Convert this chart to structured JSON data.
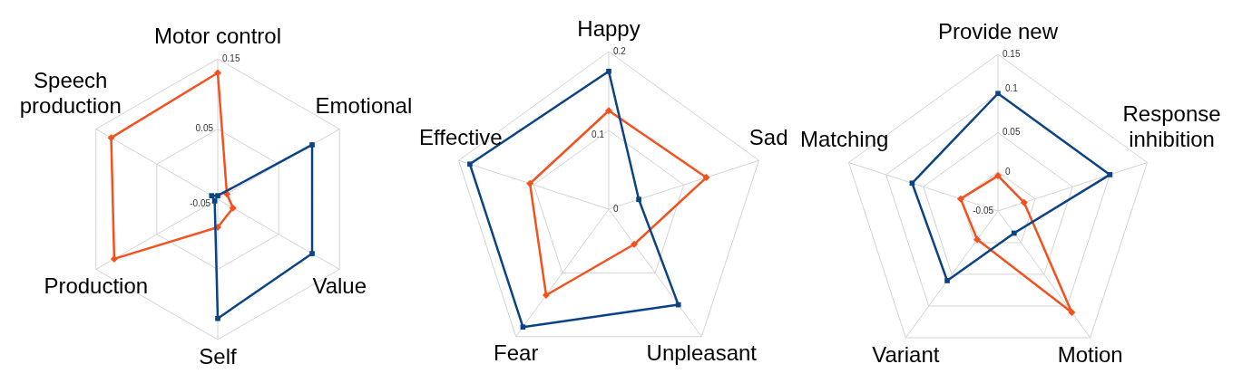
{
  "chart_data": [
    {
      "type": "radar",
      "categories": [
        "Motor control",
        "Emotional",
        "Value",
        "Self",
        "Production",
        "Speech production"
      ],
      "series": [
        {
          "color": "#0b4384",
          "values": [
            -0.045,
            0.105,
            0.105,
            0.12,
            -0.045,
            -0.04
          ]
        },
        {
          "color": "#f4511e",
          "marker": "diamond",
          "values": [
            0.13,
            -0.035,
            -0.025,
            -0.01,
            0.12,
            0.125
          ]
        }
      ],
      "ylim": [
        -0.05,
        0.15
      ],
      "yticks": [
        -0.05,
        0.05,
        0.15
      ],
      "grid": true,
      "marker": "square"
    },
    {
      "type": "radar",
      "categories": [
        "Happy",
        "Sad",
        "Unpleasant",
        "Fear",
        "Effective"
      ],
      "series": [
        {
          "color": "#0b4384",
          "values": [
            0.175,
            0.04,
            0.15,
            0.185,
            0.185
          ]
        },
        {
          "color": "#f4511e",
          "marker": "diamond",
          "values": [
            0.125,
            0.13,
            0.055,
            0.135,
            0.105
          ]
        }
      ],
      "ylim": [
        0,
        0.2
      ],
      "yticks": [
        0,
        0.1,
        0.2
      ],
      "grid": true,
      "marker": "square"
    },
    {
      "type": "radar",
      "categories": [
        "Provide new",
        "Response inhibition",
        "Motion",
        "Variant",
        "Matching"
      ],
      "series": [
        {
          "color": "#0b4384",
          "values": [
            0.1,
            0.1,
            -0.015,
            0.06,
            0.065
          ]
        },
        {
          "color": "#f4511e",
          "marker": "diamond",
          "values": [
            -0.005,
            -0.015,
            0.11,
            -0.005,
            0
          ]
        }
      ],
      "ylim": [
        -0.05,
        0.15
      ],
      "yticks": [
        -0.05,
        0,
        0.05,
        0.1,
        0.15
      ],
      "grid": true,
      "marker": "square"
    }
  ]
}
